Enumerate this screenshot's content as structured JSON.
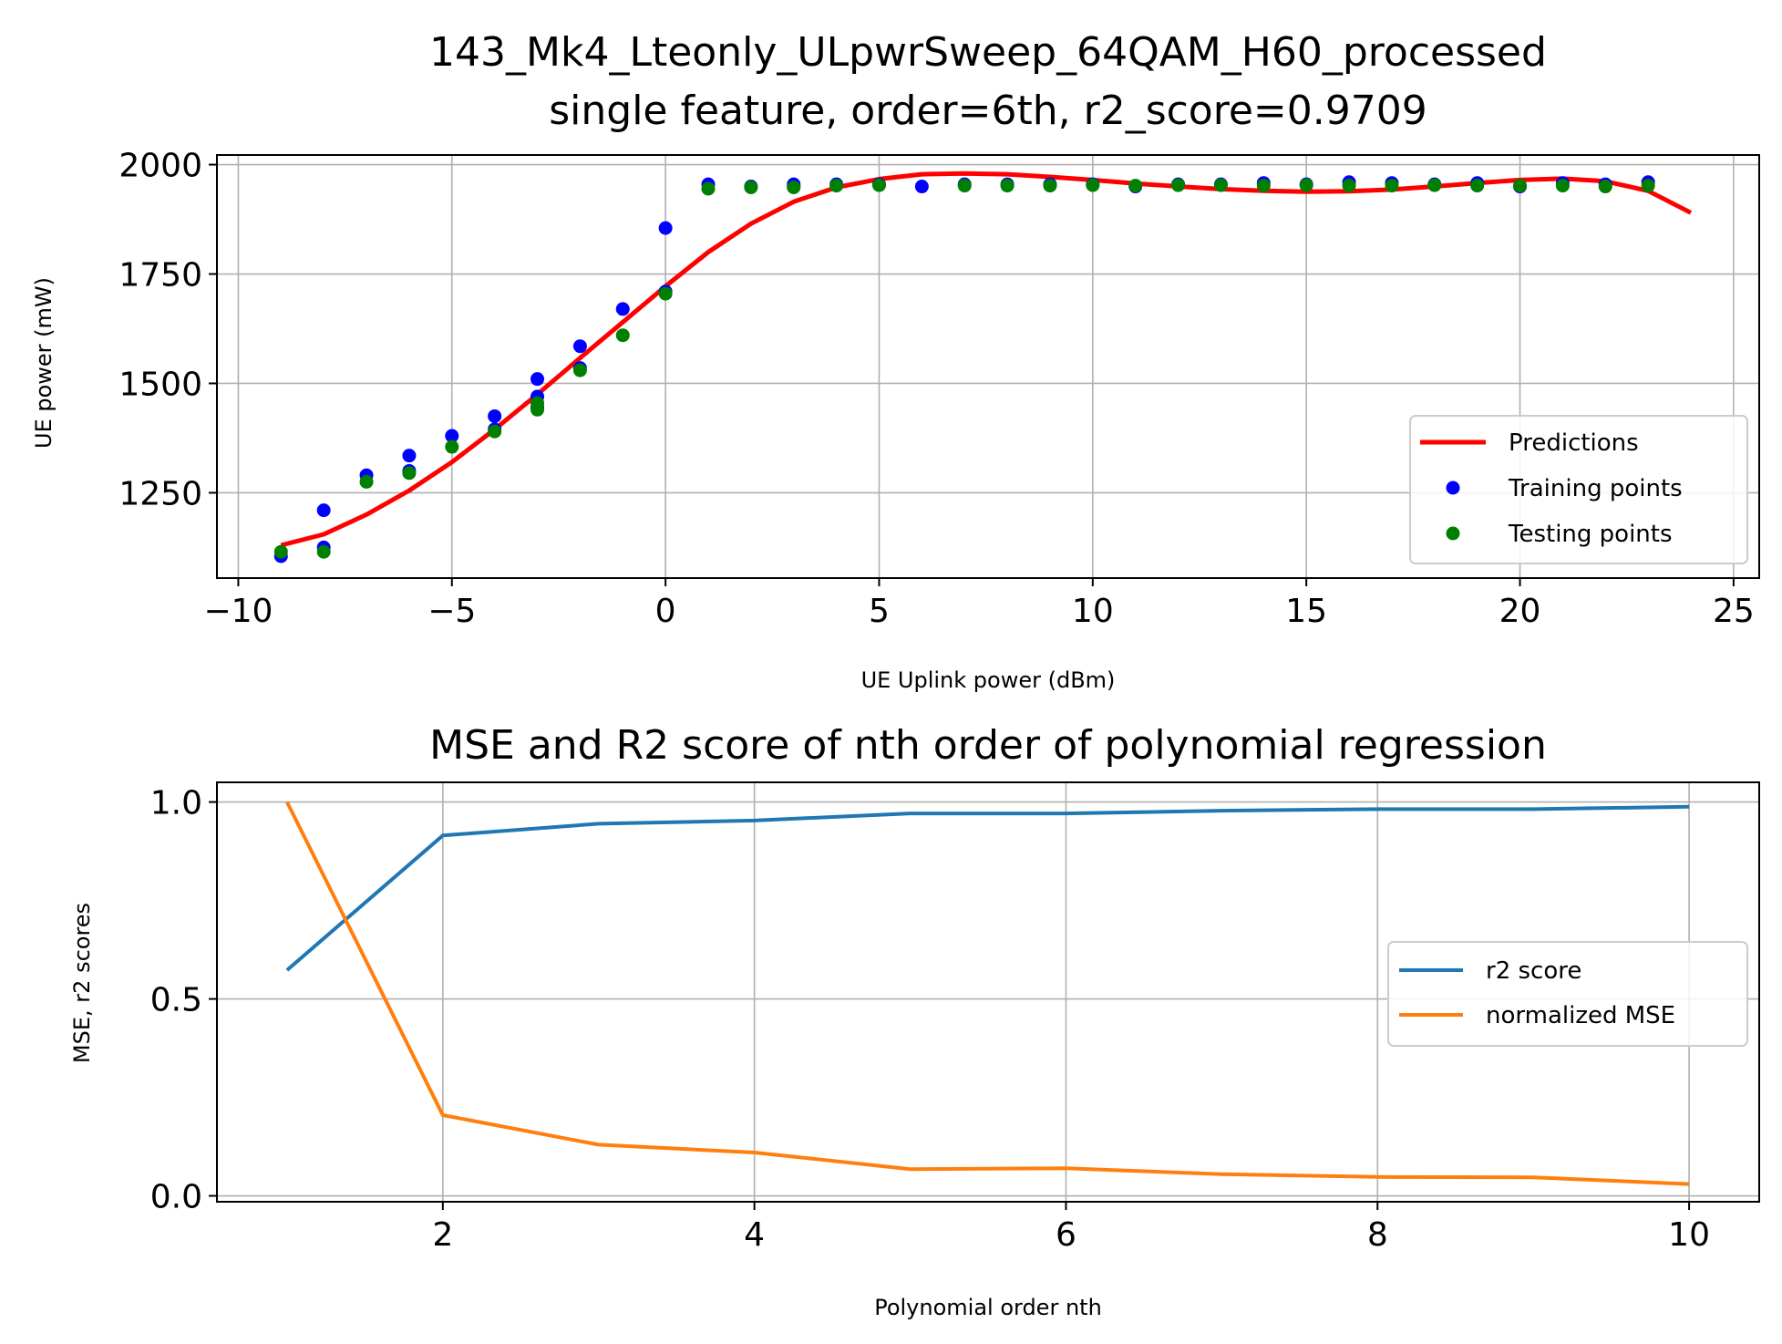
{
  "chart_data": [
    {
      "type": "scatter",
      "title": "143_Mk4_Lteonly_ULpwrSweep_64QAM_H60_processed",
      "subtitle": "single feature, order=6th, r2_score=0.9709",
      "xlabel": "UE Uplink power (dBm)",
      "ylabel": "UE power (mW)",
      "xlim": [
        -10.5,
        25.6
      ],
      "ylim": [
        1055,
        2022
      ],
      "xticks": [
        -10,
        -5,
        0,
        5,
        10,
        15,
        20,
        25
      ],
      "xtick_labels": [
        "−10",
        "−5",
        "0",
        "5",
        "10",
        "15",
        "20",
        "25"
      ],
      "yticks": [
        1250,
        1500,
        1750,
        2000
      ],
      "ytick_labels": [
        "1250",
        "1500",
        "1750",
        "2000"
      ],
      "grid": true,
      "legend_position": "lower-right",
      "series": [
        {
          "name": "Predictions",
          "kind": "line",
          "color": "#ff0000",
          "x": [
            -9,
            -8,
            -7,
            -6,
            -5,
            -4,
            -3,
            -2,
            -1,
            0,
            1,
            2,
            3,
            4,
            5,
            6,
            7,
            8,
            9,
            10,
            11,
            12,
            13,
            14,
            15,
            16,
            17,
            18,
            19,
            20,
            21,
            22,
            23,
            24
          ],
          "y": [
            1130,
            1155,
            1200,
            1255,
            1320,
            1395,
            1475,
            1558,
            1640,
            1722,
            1800,
            1865,
            1915,
            1948,
            1967,
            1978,
            1980,
            1978,
            1972,
            1965,
            1957,
            1950,
            1944,
            1940,
            1938,
            1939,
            1943,
            1950,
            1958,
            1965,
            1968,
            1962,
            1940,
            1890
          ]
        },
        {
          "name": "Training points",
          "kind": "scatter",
          "color": "#0000ff",
          "x": [
            -9,
            -8,
            -8,
            -7,
            -6,
            -6,
            -5,
            -4,
            -4,
            -3,
            -3,
            -3,
            -2,
            -2,
            -1,
            0,
            0,
            1,
            2,
            3,
            3,
            4,
            5,
            6,
            7,
            8,
            9,
            10,
            11,
            12,
            13,
            14,
            15,
            16,
            17,
            18,
            19,
            20,
            21,
            22,
            23
          ],
          "y": [
            1105,
            1210,
            1125,
            1290,
            1335,
            1300,
            1380,
            1425,
            1395,
            1510,
            1470,
            1445,
            1585,
            1535,
            1670,
            1855,
            1710,
            1955,
            1950,
            1955,
            1950,
            1955,
            1955,
            1950,
            1955,
            1955,
            1955,
            1955,
            1950,
            1955,
            1955,
            1958,
            1955,
            1960,
            1958,
            1955,
            1958,
            1950,
            1958,
            1955,
            1960
          ]
        },
        {
          "name": "Testing points",
          "kind": "scatter",
          "color": "#008000",
          "x": [
            -9,
            -8,
            -7,
            -6,
            -5,
            -4,
            -3,
            -3,
            -2,
            -1,
            0,
            1,
            2,
            3,
            4,
            5,
            7,
            8,
            9,
            10,
            11,
            12,
            13,
            14,
            15,
            16,
            17,
            18,
            19,
            20,
            21,
            22,
            23
          ],
          "y": [
            1115,
            1115,
            1275,
            1295,
            1355,
            1390,
            1455,
            1440,
            1530,
            1610,
            1705,
            1945,
            1948,
            1948,
            1952,
            1953,
            1952,
            1952,
            1952,
            1953,
            1952,
            1953,
            1953,
            1952,
            1953,
            1952,
            1952,
            1953,
            1952,
            1952,
            1952,
            1950,
            1952
          ]
        }
      ]
    },
    {
      "type": "line",
      "title": "MSE and R2 score of nth order of polynomial regression",
      "xlabel": "Polynomial order nth",
      "ylabel": "MSE, r2 scores",
      "xlim": [
        0.55,
        10.45
      ],
      "ylim": [
        -0.015,
        1.05
      ],
      "xticks": [
        2,
        4,
        6,
        8,
        10
      ],
      "xtick_labels": [
        "2",
        "4",
        "6",
        "8",
        "10"
      ],
      "yticks": [
        0.0,
        0.5,
        1.0
      ],
      "ytick_labels": [
        "0.0",
        "0.5",
        "1.0"
      ],
      "grid": true,
      "legend_position": "center-right",
      "x": [
        1,
        2,
        3,
        4,
        5,
        6,
        7,
        8,
        9,
        10
      ],
      "series": [
        {
          "name": "r2 score",
          "color": "#1f77b4",
          "values": [
            0.573,
            0.915,
            0.945,
            0.953,
            0.971,
            0.971,
            0.978,
            0.982,
            0.982,
            0.988
          ]
        },
        {
          "name": "normalized MSE",
          "color": "#ff7f0e",
          "values": [
            1.0,
            0.205,
            0.13,
            0.11,
            0.068,
            0.07,
            0.055,
            0.048,
            0.047,
            0.03
          ]
        }
      ]
    }
  ]
}
